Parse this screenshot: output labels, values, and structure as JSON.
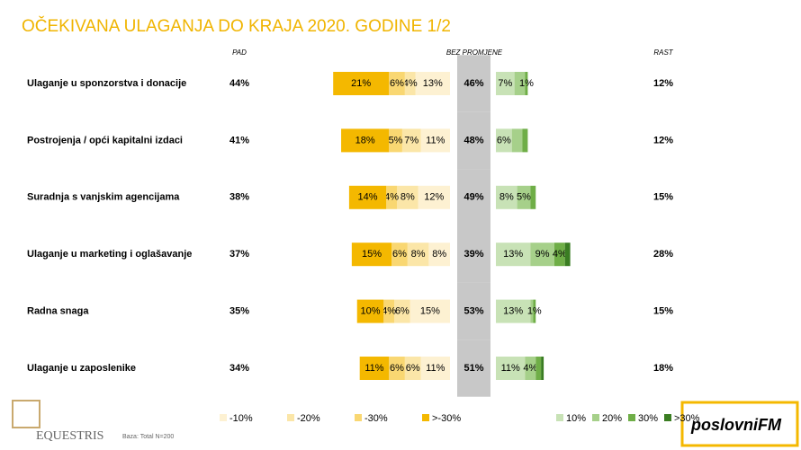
{
  "chart_data": {
    "type": "diverging_bar",
    "title": "OČEKIVANA ULAGANJA DO KRAJA 2020. GODINE 1/2",
    "header_pad": "PAD",
    "header_neutral": "BEZ PROMJENE",
    "header_rast": "RAST",
    "categories": [
      "Ulaganje u sponzorstva i donacije",
      "Postrojenja / opći kapitalni izdaci",
      "Suradnja s vanjskim agencijama",
      "Ulaganje u marketing i oglašavanje",
      "Radna snaga",
      "Ulaganje u zaposlenike"
    ],
    "pad_totals": {
      "values": [
        44,
        41,
        38,
        37,
        35,
        34
      ],
      "value_labels": [
        "44%",
        "41%",
        "38%",
        "37%",
        "35%",
        "34%"
      ]
    },
    "neutral": {
      "color": "#c8c8c8",
      "values": [
        46,
        48,
        49,
        39,
        53,
        51
      ],
      "value_labels": [
        "46%",
        "48%",
        "49%",
        "39%",
        "53%",
        "51%"
      ]
    },
    "rast_totals": {
      "values": [
        12,
        12,
        15,
        28,
        15,
        18
      ],
      "value_labels": [
        "12%",
        "12%",
        "15%",
        "28%",
        "15%",
        "18%"
      ]
    },
    "series": [
      {
        "name": "-10%",
        "group": "decline",
        "color": "#fdf1d2",
        "values": [
          13,
          11,
          12,
          8,
          15,
          11
        ],
        "value_labels": [
          "13%",
          "11%",
          "12%",
          "8%",
          "15%",
          "11%"
        ]
      },
      {
        "name": "-20%",
        "group": "decline",
        "color": "#fbe6a8",
        "values": [
          4,
          7,
          8,
          8,
          6,
          6
        ],
        "value_labels": [
          "4%",
          "7%",
          "8%",
          "8%",
          "6%",
          "6%"
        ]
      },
      {
        "name": "-30%",
        "group": "decline",
        "color": "#f9d772",
        "values": [
          6,
          5,
          4,
          6,
          4,
          6
        ],
        "value_labels": [
          "6%",
          "5%",
          "4%",
          "6%",
          "4%",
          "6%"
        ]
      },
      {
        "name": ">-30%",
        "group": "decline",
        "color": "#f4b800",
        "values": [
          21,
          18,
          14,
          15,
          10,
          11
        ],
        "value_labels": [
          "21%",
          "18%",
          "14%",
          "15%",
          "10%",
          "11%"
        ]
      },
      {
        "name": "10%",
        "group": "growth",
        "color": "#c8e2b6",
        "values": [
          7,
          6,
          8,
          13,
          13,
          11
        ],
        "value_labels": [
          "7%",
          "6%",
          "8%",
          "13%",
          "13%",
          "11%"
        ]
      },
      {
        "name": "20%",
        "group": "growth",
        "color": "#a6d08a",
        "values": [
          4,
          4,
          5,
          9,
          1,
          4
        ],
        "value_labels": [
          null,
          null,
          "5%",
          "9%",
          null,
          "4%"
        ]
      },
      {
        "name": "30%",
        "group": "growth",
        "color": "#6fae47",
        "values": [
          1,
          2,
          2,
          4,
          1,
          2
        ],
        "value_labels": [
          "1%",
          null,
          null,
          "4%",
          "1%",
          null
        ]
      },
      {
        "name": ">30%",
        "group": "growth",
        "color": "#3a7d22",
        "values": [
          0,
          0,
          0,
          2,
          0,
          1
        ],
        "value_labels": [
          null,
          null,
          null,
          null,
          null,
          null
        ]
      }
    ],
    "footnote": "Baza: Total N=200",
    "logo_left": "EQUESTRIS",
    "logo_right": "poslovniFM"
  }
}
